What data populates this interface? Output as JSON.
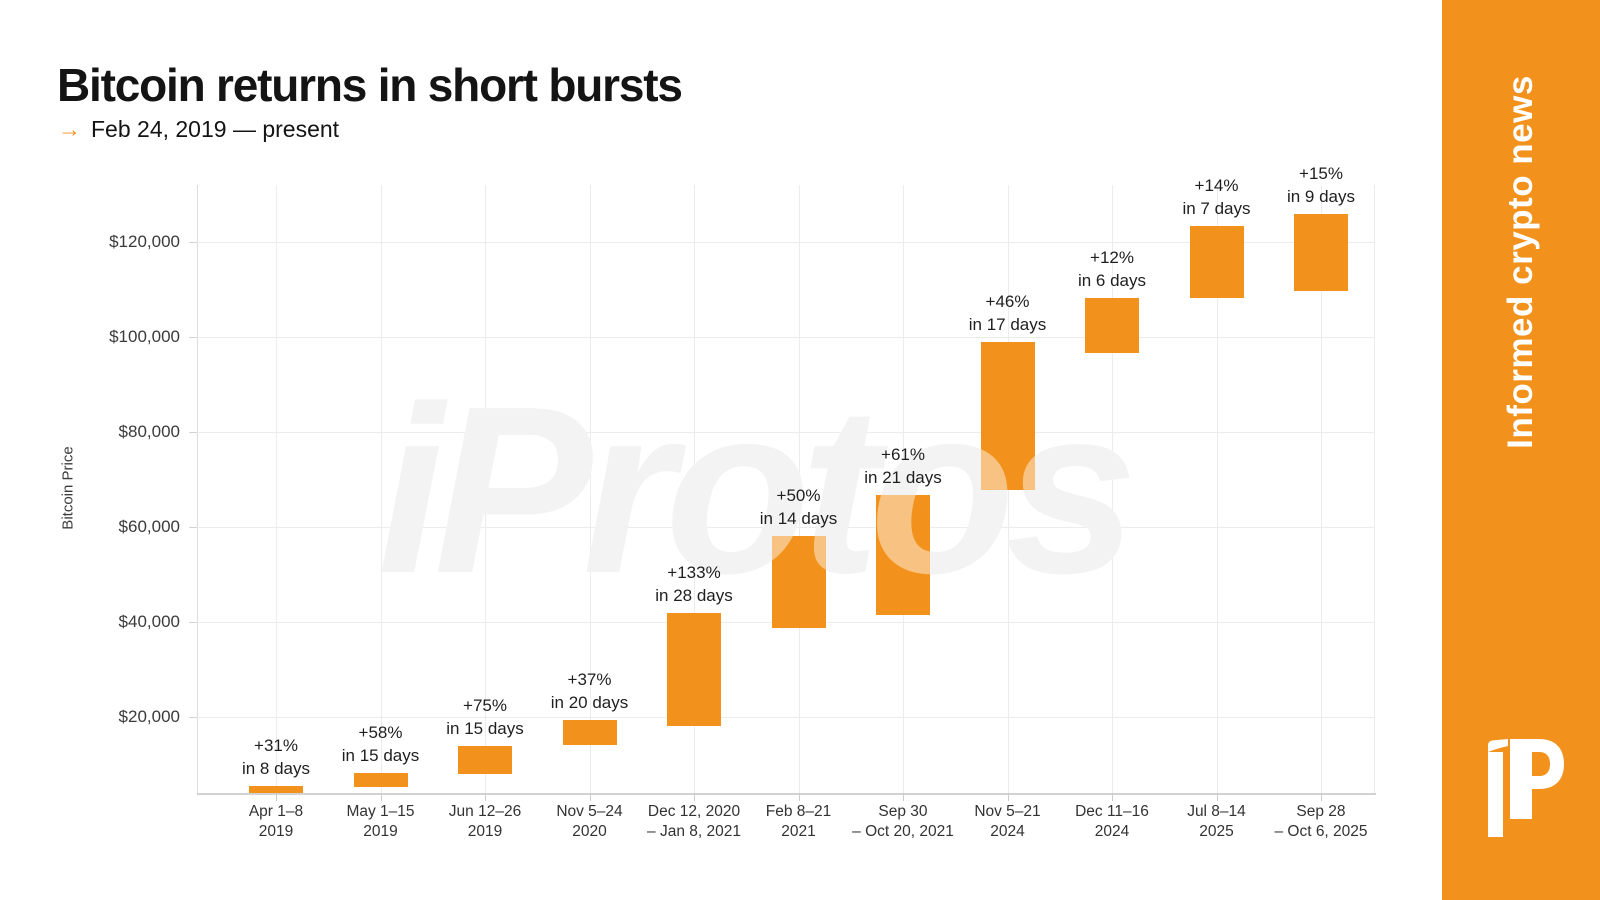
{
  "header": {
    "title": "Bitcoin returns in short bursts",
    "arrow": "→",
    "subtitle": "Feb 24, 2019 — present"
  },
  "watermark": "iProtos",
  "sidebar": {
    "tagline": "Informed crypto news",
    "color": "#f2921d"
  },
  "chart_data": {
    "type": "bar",
    "subtype": "floating-range-bars",
    "ylabel": "Bitcoin Price",
    "ylim": [
      4000,
      132000
    ],
    "grid": true,
    "bar_color": "#f2921d",
    "ytick_values": [
      20000,
      40000,
      60000,
      80000,
      100000,
      120000
    ],
    "ytick_labels": [
      "$20,000",
      "$40,000",
      "$60,000",
      "$80,000",
      "$100,000",
      "$120,000"
    ],
    "bars": [
      {
        "date_line1": "Apr 1–8",
        "date_line2": "2019",
        "start": 4100,
        "end": 5380,
        "gain": "+31%",
        "duration": "in 8 days"
      },
      {
        "date_line1": "May 1–15",
        "date_line2": "2019",
        "start": 5260,
        "end": 8310,
        "gain": "+58%",
        "duration": "in 15 days"
      },
      {
        "date_line1": "Jun 12–26",
        "date_line2": "2019",
        "start": 7900,
        "end": 13830,
        "gain": "+75%",
        "duration": "in 15 days"
      },
      {
        "date_line1": "Nov 5–24",
        "date_line2": "2020",
        "start": 14100,
        "end": 19320,
        "gain": "+37%",
        "duration": "in 20 days"
      },
      {
        "date_line1": "Dec 12, 2020",
        "date_line2": "– Jan 8, 2021",
        "start": 18000,
        "end": 41900,
        "gain": "+133%",
        "duration": "in 28 days"
      },
      {
        "date_line1": "Feb 8–21",
        "date_line2": "2021",
        "start": 38800,
        "end": 58200,
        "gain": "+50%",
        "duration": "in 14 days"
      },
      {
        "date_line1": "Sep 30",
        "date_line2": "– Oct 20, 2021",
        "start": 41500,
        "end": 66800,
        "gain": "+61%",
        "duration": "in 21 days"
      },
      {
        "date_line1": "Nov 5–21",
        "date_line2": "2024",
        "start": 67800,
        "end": 99000,
        "gain": "+46%",
        "duration": "in 17 days"
      },
      {
        "date_line1": "Dec 11–16",
        "date_line2": "2024",
        "start": 96600,
        "end": 108200,
        "gain": "+12%",
        "duration": "in 6 days"
      },
      {
        "date_line1": "Jul 8–14",
        "date_line2": "2025",
        "start": 108200,
        "end": 123300,
        "gain": "+14%",
        "duration": "in 7 days"
      },
      {
        "date_line1": "Sep 28",
        "date_line2": "– Oct 6, 2025",
        "start": 109600,
        "end": 126000,
        "gain": "+15%",
        "duration": "in 9 days"
      }
    ]
  }
}
